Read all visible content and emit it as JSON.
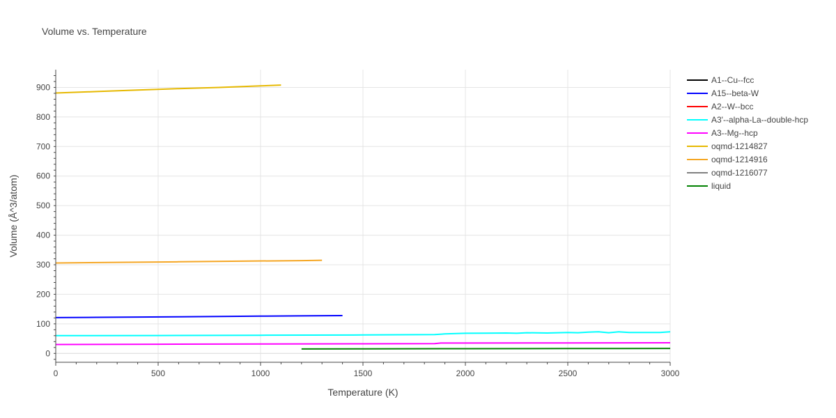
{
  "chart_data": {
    "type": "line",
    "title": "Volume vs. Temperature",
    "xlabel": "Temperature (K)",
    "ylabel": "Volume (Å^3/atom)",
    "xlim": [
      0,
      3000
    ],
    "ylim": [
      -30,
      960
    ],
    "x_ticks": [
      0,
      500,
      1000,
      1500,
      2000,
      2500,
      3000
    ],
    "y_ticks": [
      0,
      100,
      200,
      300,
      400,
      500,
      600,
      700,
      800,
      900
    ],
    "grid": true,
    "legend_position": "right",
    "series": [
      {
        "name": "A1--Cu--fcc",
        "color": "#000000",
        "x": [],
        "y": []
      },
      {
        "name": "A15--beta-W",
        "color": "#0000ff",
        "x": [
          0,
          200,
          400,
          600,
          800,
          1000,
          1200,
          1400
        ],
        "y": [
          121,
          122,
          123,
          124,
          125,
          126,
          127,
          128
        ]
      },
      {
        "name": "A2--W--bcc",
        "color": "#ff0000",
        "x": [],
        "y": []
      },
      {
        "name": "A3'--alpha-La--double-hcp",
        "color": "#00ffff",
        "x": [
          0,
          500,
          1000,
          1500,
          1850,
          1900,
          2000,
          2100,
          2200,
          2250,
          2300,
          2400,
          2500,
          2550,
          2600,
          2650,
          2700,
          2750,
          2800,
          2900,
          2950,
          3000
        ],
        "y": [
          60,
          60.5,
          61.5,
          62.5,
          63.5,
          66,
          68,
          68.5,
          69,
          68,
          70,
          69,
          71,
          70,
          72,
          73,
          70,
          73,
          71,
          71,
          71,
          73
        ]
      },
      {
        "name": "A3--Mg--hcp",
        "color": "#ff00ff",
        "x": [
          0,
          500,
          1000,
          1500,
          1850,
          1880,
          2000,
          2500,
          3000
        ],
        "y": [
          30,
          31,
          32,
          32.5,
          33,
          35,
          35,
          35.5,
          36
        ]
      },
      {
        "name": "oqmd-1214827",
        "color": "#e6b800",
        "x": [
          0,
          200,
          400,
          600,
          800,
          1000,
          1100
        ],
        "y": [
          881,
          886,
          891,
          896,
          900,
          905,
          908
        ]
      },
      {
        "name": "oqmd-1214916",
        "color": "#f5a623",
        "x": [
          0,
          300,
          600,
          900,
          1200,
          1300
        ],
        "y": [
          306,
          308,
          310,
          312,
          314,
          315
        ]
      },
      {
        "name": "oqmd-1216077",
        "color": "#808080",
        "x": [],
        "y": []
      },
      {
        "name": "liquid",
        "color": "#008000",
        "x": [
          1200,
          1500,
          2000,
          2500,
          3000
        ],
        "y": [
          15,
          15.5,
          16,
          16.5,
          17
        ]
      }
    ]
  }
}
